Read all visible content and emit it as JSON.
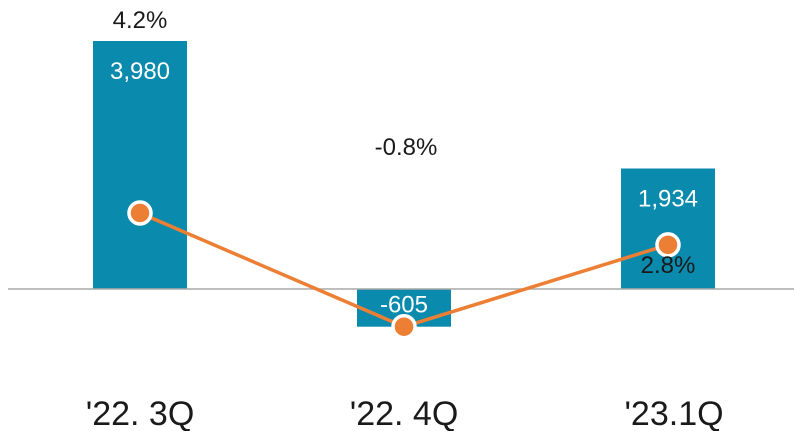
{
  "chart_data": {
    "type": "bar",
    "categories": [
      "'22. 3Q",
      "'22. 4Q",
      "'23.1Q"
    ],
    "series": [
      {
        "type": "bar",
        "values": [
          3980,
          -605,
          1934
        ],
        "value_labels": [
          "3,980",
          "-605",
          "1,934"
        ]
      },
      {
        "type": "line",
        "values": [
          4.2,
          -0.8,
          2.8
        ],
        "value_labels": [
          "4.2%",
          "-0.8%",
          "2.8%"
        ]
      }
    ],
    "title": "",
    "xlabel": "",
    "ylabel": "",
    "grid": false,
    "colors": {
      "bar": "#0a8aac",
      "line": "#ec7f34",
      "baseline": "#a9a9a9"
    }
  }
}
